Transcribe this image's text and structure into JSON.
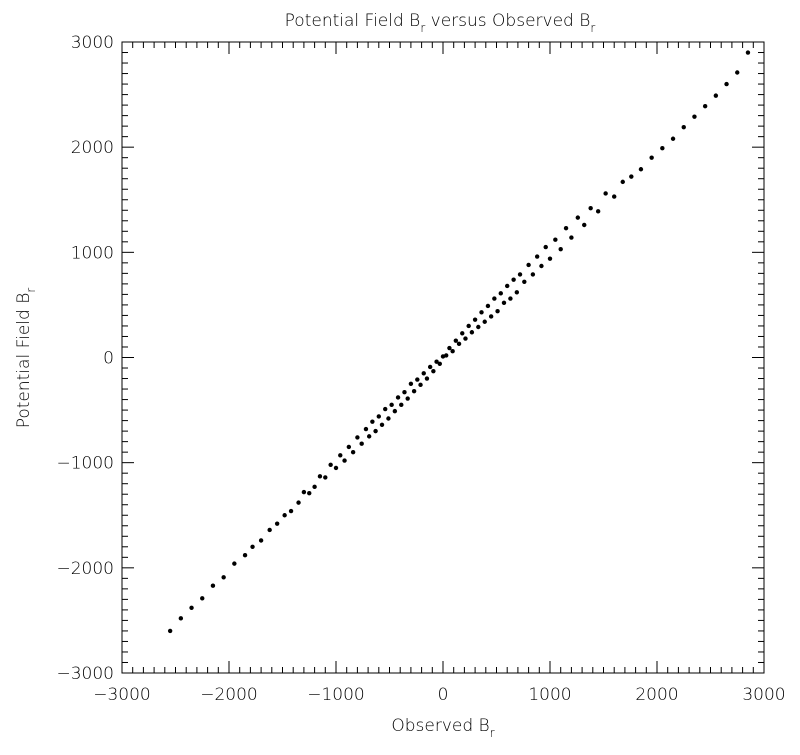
{
  "chart_data": {
    "type": "scatter",
    "title": [
      {
        "text": "Potential Field B"
      },
      {
        "text": "r",
        "sub": true
      },
      {
        "text": "  versus Observed B"
      },
      {
        "text": "r",
        "sub": true
      }
    ],
    "xlabel": [
      {
        "text": "Observed B"
      },
      {
        "text": "r",
        "sub": true
      }
    ],
    "ylabel": [
      {
        "text": "Potential Field B"
      },
      {
        "text": "r",
        "sub": true
      }
    ],
    "xlim": [
      -3000,
      3000
    ],
    "ylim": [
      -3000,
      3000
    ],
    "xticks": [
      {
        "value": -3000,
        "label": "−3000"
      },
      {
        "value": -2000,
        "label": "−2000"
      },
      {
        "value": -1000,
        "label": "−1000"
      },
      0,
      1000,
      2000,
      3000
    ],
    "yticks": [
      {
        "value": -3000,
        "label": "−3000"
      },
      {
        "value": -2000,
        "label": "−2000"
      },
      {
        "value": -1000,
        "label": "−1000"
      },
      0,
      1000,
      2000,
      3000
    ],
    "minor_ticks": 10,
    "color": "#000000",
    "x": [
      -2550,
      -2450,
      -2350,
      -2250,
      -2150,
      -2050,
      -1950,
      -1850,
      -1780,
      -1700,
      -1620,
      -1550,
      -1480,
      -1420,
      -1350,
      -1300,
      -1250,
      -1200,
      -1150,
      -1100,
      -1050,
      -1000,
      -960,
      -920,
      -880,
      -840,
      -800,
      -760,
      -720,
      -690,
      -660,
      -630,
      -600,
      -570,
      -540,
      -510,
      -480,
      -450,
      -420,
      -390,
      -360,
      -330,
      -300,
      -270,
      -240,
      -210,
      -180,
      -150,
      -120,
      -90,
      -60,
      -30,
      0,
      30,
      60,
      90,
      120,
      150,
      180,
      210,
      240,
      270,
      300,
      330,
      360,
      390,
      420,
      450,
      480,
      510,
      540,
      570,
      600,
      630,
      660,
      690,
      720,
      760,
      800,
      840,
      880,
      920,
      960,
      1000,
      1050,
      1100,
      1150,
      1200,
      1260,
      1320,
      1380,
      1450,
      1520,
      1600,
      1680,
      1760,
      1850,
      1950,
      2050,
      2150,
      2250,
      2350,
      2450,
      2550,
      2650,
      2750,
      2850
    ],
    "y": [
      -2600,
      -2480,
      -2380,
      -2290,
      -2170,
      -2090,
      -1960,
      -1880,
      -1800,
      -1740,
      -1640,
      -1580,
      -1500,
      -1460,
      -1380,
      -1280,
      -1290,
      -1230,
      -1130,
      -1140,
      -1020,
      -1050,
      -930,
      -980,
      -850,
      -900,
      -760,
      -820,
      -680,
      -750,
      -610,
      -700,
      -560,
      -640,
      -490,
      -580,
      -450,
      -510,
      -380,
      -450,
      -330,
      -390,
      -250,
      -320,
      -210,
      -260,
      -150,
      -200,
      -90,
      -130,
      -40,
      -60,
      10,
      20,
      90,
      60,
      160,
      130,
      230,
      180,
      300,
      240,
      360,
      290,
      430,
      340,
      490,
      390,
      560,
      440,
      610,
      520,
      680,
      560,
      740,
      620,
      790,
      720,
      880,
      790,
      960,
      870,
      1050,
      940,
      1120,
      1030,
      1230,
      1140,
      1330,
      1260,
      1420,
      1390,
      1560,
      1530,
      1670,
      1720,
      1790,
      1900,
      1990,
      2080,
      2190,
      2290,
      2390,
      2490,
      2600,
      2710,
      2900
    ]
  }
}
